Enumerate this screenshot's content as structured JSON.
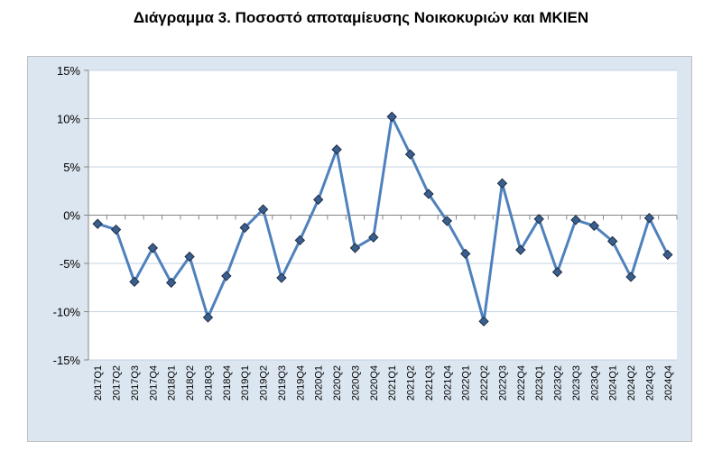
{
  "chart_data": {
    "type": "line",
    "title": "Διάγραμμα 3. Ποσοστό αποταμίευσης Νοικοκυριών και ΜΚΙΕΝ",
    "xlabel": "",
    "ylabel": "",
    "ylim": [
      -15,
      15
    ],
    "yticks": [
      15,
      10,
      5,
      0,
      -5,
      -10,
      -15
    ],
    "ytick_labels": [
      "15%",
      "10%",
      "5%",
      "0%",
      "-5%",
      "-10%",
      "-15%"
    ],
    "categories": [
      "2017Q1",
      "2017Q2",
      "2017Q3",
      "2017Q4",
      "2018Q1",
      "2018Q2",
      "2018Q3",
      "2018Q4",
      "2019Q1",
      "2019Q2",
      "2019Q3",
      "2019Q4",
      "2020Q1",
      "2020Q2",
      "2020Q3",
      "2020Q4",
      "2021Q1",
      "2021Q2",
      "2021Q3",
      "2021Q4",
      "2022Q1",
      "2022Q2",
      "2022Q3",
      "2022Q4",
      "2023Q1",
      "2023Q2",
      "2023Q3",
      "2023Q4",
      "2024Q1",
      "2024Q2",
      "2024Q3",
      "2024Q4"
    ],
    "series": [
      {
        "values": [
          -0.9,
          -1.5,
          -6.9,
          -3.4,
          -7.0,
          -4.3,
          -10.6,
          -6.3,
          -1.3,
          0.6,
          -6.5,
          -2.6,
          1.6,
          6.8,
          -3.4,
          -2.3,
          10.2,
          6.3,
          2.2,
          -0.6,
          -4.0,
          -11.0,
          3.3,
          -3.6,
          -0.4,
          -5.9,
          -0.5,
          -1.1,
          -2.7,
          -6.4,
          -0.3,
          -4.1
        ],
        "color": "#4f81bd",
        "marker": "diamond",
        "marker_color": "#3a5f8f"
      }
    ],
    "grid": true,
    "legend": "none"
  },
  "colors": {
    "frame_background": "#dce6f1",
    "plot_background": "#ffffff",
    "gridline": "#c6d2e2",
    "axis": "#868686"
  }
}
